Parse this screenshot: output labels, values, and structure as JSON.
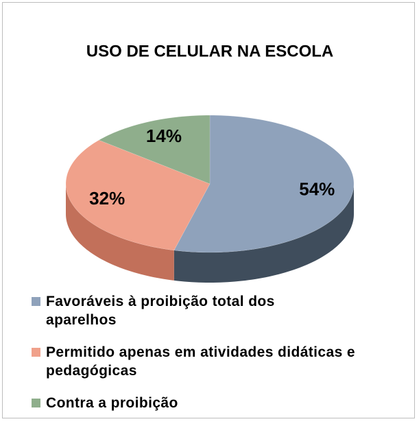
{
  "chart_data": {
    "type": "pie",
    "title": "USO DE CELULAR NA ESCOLA",
    "categories": [
      "Favoráveis à proibição total dos aparelhos",
      "Permitido apenas em atividades didáticas e pedagógicas",
      "Contra a proibição"
    ],
    "values": [
      54,
      32,
      14
    ],
    "value_labels": [
      "54%",
      "32%",
      "14%"
    ],
    "colors": [
      "#8fa2bb",
      "#f0a18b",
      "#8fae8c"
    ],
    "side_colors": [
      "#3f4d5c",
      "#c2705a",
      "#5f7d5c"
    ]
  }
}
